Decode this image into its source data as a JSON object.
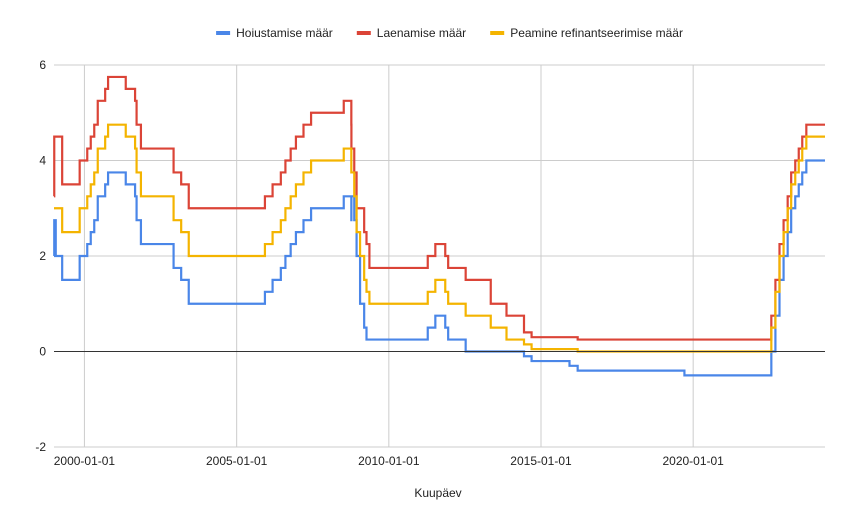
{
  "chart_data": {
    "type": "line",
    "title": "",
    "xlabel": "Kuupäev",
    "ylabel": "",
    "xlim": [
      "1999-01-01",
      "2024-05-01"
    ],
    "ylim": [
      -2,
      6
    ],
    "y_ticks": [
      -2,
      0,
      2,
      4,
      6
    ],
    "x_ticks": [
      "2000-01-01",
      "2005-01-01",
      "2010-01-01",
      "2015-01-01",
      "2020-01-01"
    ],
    "grid": true,
    "legend_position": "top",
    "step": true,
    "series": [
      {
        "name": "Hoiustamise määr",
        "color": "#4a86e8",
        "x": [
          "1999-01-01",
          "1999-01-04",
          "1999-01-22",
          "1999-04-09",
          "1999-11-05",
          "2000-02-04",
          "2000-03-17",
          "2000-04-28",
          "2000-06-09",
          "2000-06-28",
          "2000-09-06",
          "2000-10-11",
          "2001-05-11",
          "2001-08-31",
          "2001-09-18",
          "2001-11-09",
          "2002-12-06",
          "2003-03-07",
          "2003-06-06",
          "2005-12-06",
          "2006-03-08",
          "2006-06-15",
          "2006-08-09",
          "2006-10-11",
          "2006-12-13",
          "2007-03-14",
          "2007-06-13",
          "2008-07-09",
          "2008-10-08",
          "2008-10-09",
          "2008-11-12",
          "2008-12-10",
          "2009-01-21",
          "2009-03-11",
          "2009-04-08",
          "2009-05-13",
          "2011-04-13",
          "2011-07-13",
          "2011-11-09",
          "2011-12-14",
          "2012-07-11",
          "2013-05-08",
          "2013-11-13",
          "2014-06-11",
          "2014-09-10",
          "2015-12-09",
          "2016-03-16",
          "2019-09-18",
          "2022-07-27",
          "2022-09-14",
          "2022-11-02",
          "2022-12-21",
          "2023-02-08",
          "2023-03-22",
          "2023-05-10",
          "2023-06-21",
          "2023-08-02",
          "2023-09-20",
          "2024-05-01"
        ],
        "values": [
          2.0,
          2.75,
          2.0,
          1.5,
          2.0,
          2.25,
          2.5,
          2.75,
          3.25,
          3.25,
          3.5,
          3.75,
          3.5,
          3.25,
          2.75,
          2.25,
          1.75,
          1.5,
          1.0,
          1.25,
          1.5,
          1.75,
          2.0,
          2.25,
          2.5,
          2.75,
          3.0,
          3.25,
          2.75,
          3.25,
          2.75,
          2.0,
          1.0,
          0.5,
          0.25,
          0.25,
          0.5,
          0.75,
          0.5,
          0.25,
          0.0,
          0.0,
          0.0,
          -0.1,
          -0.2,
          -0.3,
          -0.4,
          -0.5,
          0.0,
          0.75,
          1.5,
          2.0,
          2.5,
          3.0,
          3.25,
          3.5,
          3.75,
          4.0,
          4.0
        ]
      },
      {
        "name": "Laenamise määr",
        "color": "#db4437",
        "x": [
          "1999-01-01",
          "1999-01-04",
          "1999-01-22",
          "1999-04-09",
          "1999-11-05",
          "2000-02-04",
          "2000-03-17",
          "2000-04-28",
          "2000-06-09",
          "2000-06-28",
          "2000-09-06",
          "2000-10-11",
          "2001-05-11",
          "2001-08-31",
          "2001-09-18",
          "2001-11-09",
          "2002-12-06",
          "2003-03-07",
          "2003-06-06",
          "2005-12-06",
          "2006-03-08",
          "2006-06-15",
          "2006-08-09",
          "2006-10-11",
          "2006-12-13",
          "2007-03-14",
          "2007-06-13",
          "2008-07-09",
          "2008-10-08",
          "2008-10-09",
          "2008-11-12",
          "2008-12-10",
          "2009-01-21",
          "2009-03-11",
          "2009-04-08",
          "2009-05-13",
          "2011-04-13",
          "2011-07-13",
          "2011-11-09",
          "2011-12-14",
          "2012-07-11",
          "2013-05-08",
          "2013-11-13",
          "2014-06-11",
          "2014-09-10",
          "2015-12-09",
          "2016-03-16",
          "2019-09-18",
          "2022-07-27",
          "2022-09-14",
          "2022-11-02",
          "2022-12-21",
          "2023-02-08",
          "2023-03-22",
          "2023-05-10",
          "2023-06-21",
          "2023-08-02",
          "2023-09-20",
          "2024-05-01"
        ],
        "values": [
          3.25,
          4.5,
          4.5,
          3.5,
          4.0,
          4.25,
          4.5,
          4.75,
          5.25,
          5.25,
          5.5,
          5.75,
          5.5,
          5.25,
          4.75,
          4.25,
          3.75,
          3.5,
          3.0,
          3.25,
          3.5,
          3.75,
          4.0,
          4.25,
          4.5,
          4.75,
          5.0,
          5.25,
          4.75,
          4.25,
          3.75,
          3.0,
          3.0,
          2.5,
          2.25,
          1.75,
          2.0,
          2.25,
          2.0,
          1.75,
          1.5,
          1.0,
          0.75,
          0.4,
          0.3,
          0.3,
          0.25,
          0.25,
          0.75,
          1.5,
          2.25,
          2.75,
          3.25,
          3.75,
          4.0,
          4.25,
          4.5,
          4.75,
          4.75
        ]
      },
      {
        "name": "Peamine refinantseerimise määr",
        "color": "#f4b400",
        "x": [
          "1999-01-01",
          "1999-04-09",
          "1999-11-05",
          "2000-02-04",
          "2000-03-17",
          "2000-04-28",
          "2000-06-09",
          "2000-06-28",
          "2000-09-06",
          "2000-10-11",
          "2001-05-11",
          "2001-08-31",
          "2001-09-18",
          "2001-11-09",
          "2002-12-06",
          "2003-03-07",
          "2003-06-06",
          "2005-12-06",
          "2006-03-08",
          "2006-06-15",
          "2006-08-09",
          "2006-10-11",
          "2006-12-13",
          "2007-03-14",
          "2007-06-13",
          "2008-07-09",
          "2008-10-08",
          "2008-10-15",
          "2008-11-12",
          "2008-12-10",
          "2009-01-21",
          "2009-03-11",
          "2009-04-08",
          "2009-05-13",
          "2011-04-13",
          "2011-07-13",
          "2011-11-09",
          "2011-12-14",
          "2012-07-11",
          "2013-05-08",
          "2013-11-13",
          "2014-06-11",
          "2014-09-10",
          "2016-03-16",
          "2022-07-27",
          "2022-09-14",
          "2022-11-02",
          "2022-12-21",
          "2023-02-08",
          "2023-03-22",
          "2023-05-10",
          "2023-06-21",
          "2023-08-02",
          "2023-09-20",
          "2024-05-01"
        ],
        "values": [
          3.0,
          2.5,
          3.0,
          3.25,
          3.5,
          3.75,
          4.25,
          4.25,
          4.5,
          4.75,
          4.5,
          4.25,
          3.75,
          3.25,
          2.75,
          2.5,
          2.0,
          2.25,
          2.5,
          2.75,
          3.0,
          3.25,
          3.5,
          3.75,
          4.0,
          4.25,
          3.75,
          3.75,
          3.25,
          2.5,
          2.0,
          1.5,
          1.25,
          1.0,
          1.25,
          1.5,
          1.25,
          1.0,
          0.75,
          0.5,
          0.25,
          0.15,
          0.05,
          0.0,
          0.5,
          1.25,
          2.0,
          2.5,
          3.0,
          3.5,
          3.75,
          4.0,
          4.25,
          4.5,
          4.5
        ]
      }
    ]
  }
}
